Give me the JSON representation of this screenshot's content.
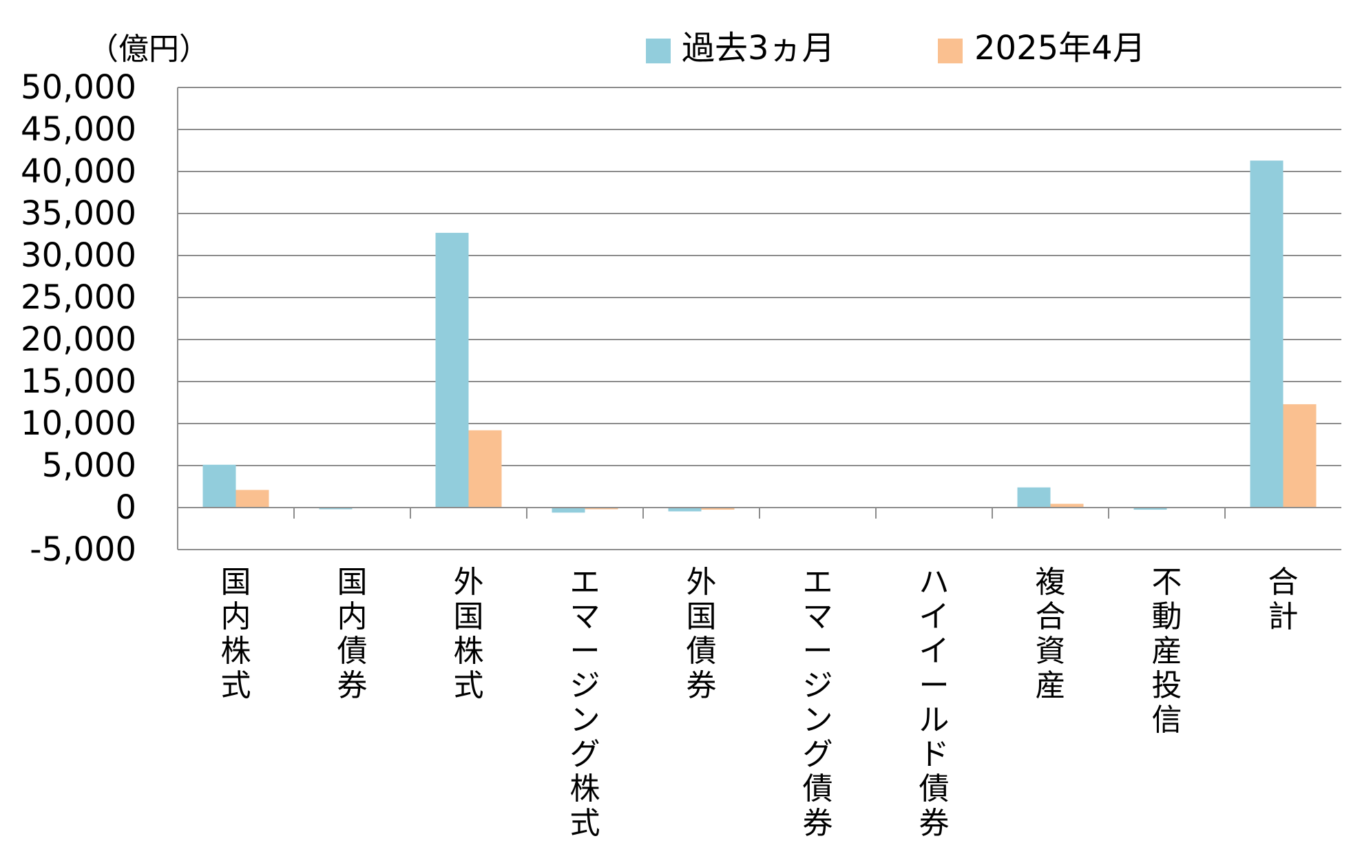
{
  "chart_data": {
    "type": "bar",
    "unit_label": "（億円）",
    "categories": [
      "国内株式",
      "国内債券",
      "外国株式",
      "エマージング株式",
      "外国債券",
      "エマージング債券",
      "ハイイールド債券",
      "複合資産",
      "不動産投信",
      "合計"
    ],
    "series": [
      {
        "name": "過去3ヵ月",
        "color": "#92CDDC",
        "values": [
          5100,
          -200,
          32700,
          -600,
          -450,
          0,
          0,
          2400,
          -250,
          41300
        ]
      },
      {
        "name": "2025年4月",
        "color": "#FAC090",
        "values": [
          2100,
          0,
          9200,
          -200,
          -250,
          0,
          0,
          450,
          0,
          12300
        ]
      }
    ],
    "ylim": [
      -5000,
      50000
    ],
    "yticks": [
      50000,
      45000,
      40000,
      35000,
      30000,
      25000,
      20000,
      15000,
      10000,
      5000,
      0,
      -5000
    ],
    "ytick_labels": [
      "50,000",
      "45,000",
      "40,000",
      "35,000",
      "30,000",
      "25,000",
      "20,000",
      "15,000",
      "10,000",
      "5,000",
      "0",
      "-5,000"
    ],
    "negative_tick_color": "#FF0000",
    "grid": true,
    "legend_position": "top"
  }
}
